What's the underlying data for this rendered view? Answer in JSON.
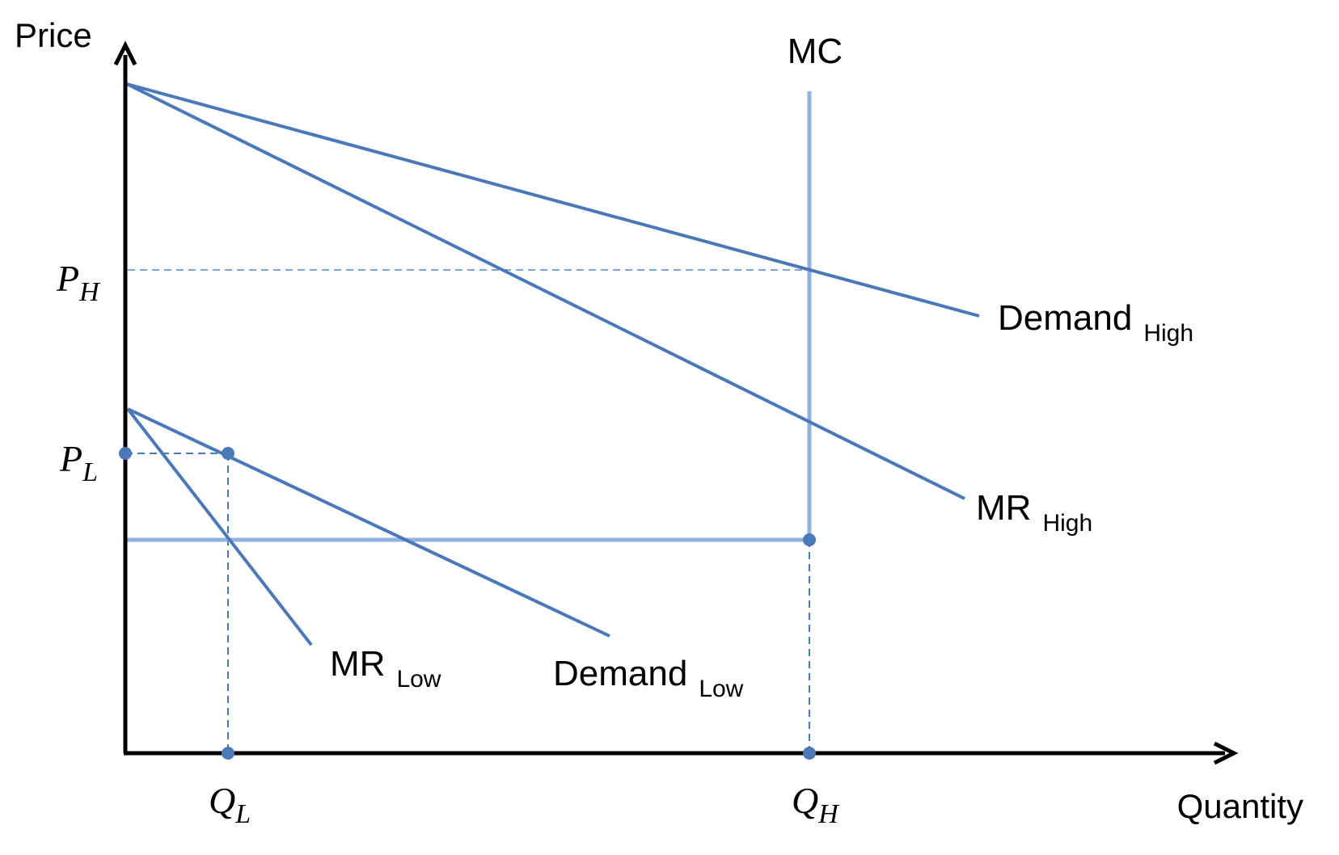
{
  "axes": {
    "y_label": "Price",
    "x_label": "Quantity"
  },
  "prices": {
    "high": {
      "main": "P",
      "sub": "H"
    },
    "low": {
      "main": "P",
      "sub": "L"
    }
  },
  "quantities": {
    "low": {
      "main": "Q",
      "sub": "L"
    },
    "high": {
      "main": "Q",
      "sub": "H"
    }
  },
  "curves": {
    "mc": {
      "label": "MC"
    },
    "demand_high": {
      "label": "Demand",
      "sub": "High"
    },
    "mr_high": {
      "label": "MR",
      "sub": "High"
    },
    "mr_low": {
      "label": "MR",
      "sub": "Low"
    },
    "demand_low": {
      "label": "Demand",
      "sub": "Low"
    }
  },
  "colors": {
    "curve": "#4A78B8",
    "mc": "#8FB2E0",
    "guide": "#7AA6DC",
    "axis": "#000000"
  }
}
